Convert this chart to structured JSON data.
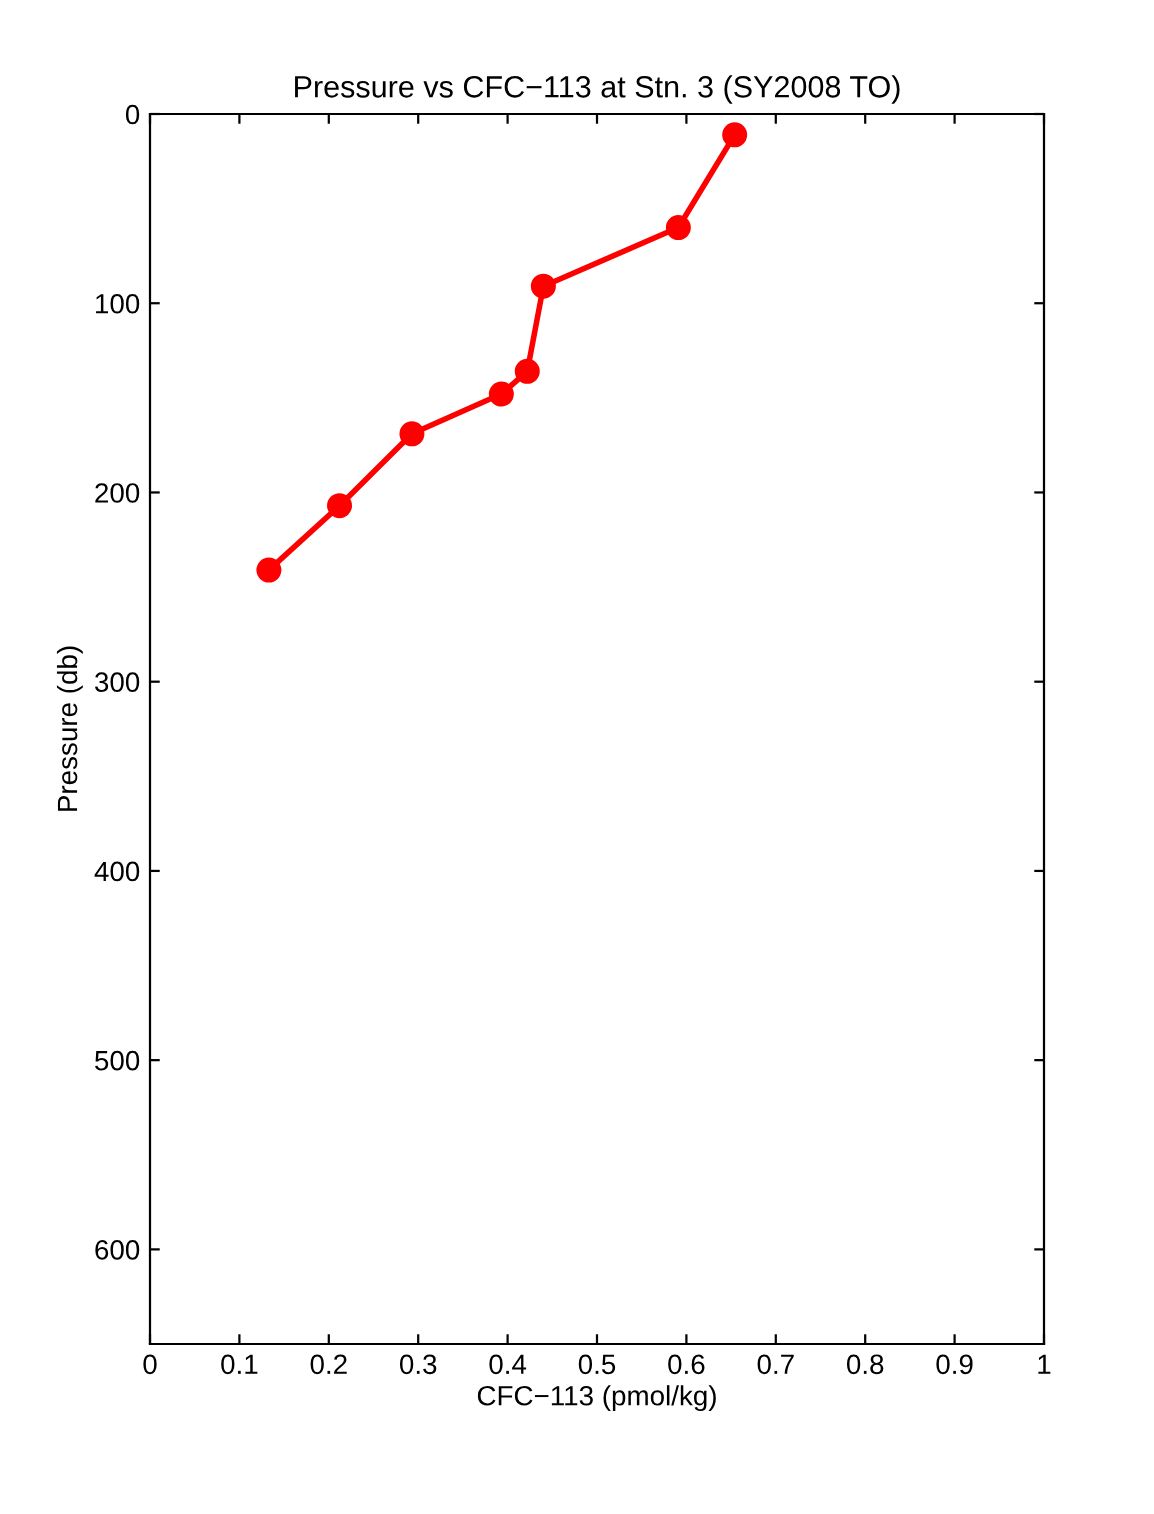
{
  "chart_data": {
    "type": "line",
    "title": "Pressure vs CFC−113 at Stn. 3 (SY2008 TO)",
    "xlabel": "CFC−113 (pmol/kg)",
    "ylabel": "Pressure (db)",
    "series": [
      {
        "color": "#ff0000",
        "x": [
          0.654,
          0.591,
          0.44,
          0.422,
          0.393,
          0.293,
          0.212,
          0.133
        ],
        "values": [
          11,
          60,
          91,
          136,
          148,
          169,
          207,
          241
        ]
      }
    ],
    "marker": "circle",
    "line_style": "solid",
    "grid": false,
    "legend": false,
    "xlim": [
      0,
      1
    ],
    "xticks": [
      0,
      0.1,
      0.2,
      0.3,
      0.4,
      0.5,
      0.6,
      0.7,
      0.8,
      0.9,
      1
    ],
    "ylim": [
      650,
      0
    ],
    "yticks": [
      0,
      100,
      200,
      300,
      400,
      500,
      600
    ]
  }
}
